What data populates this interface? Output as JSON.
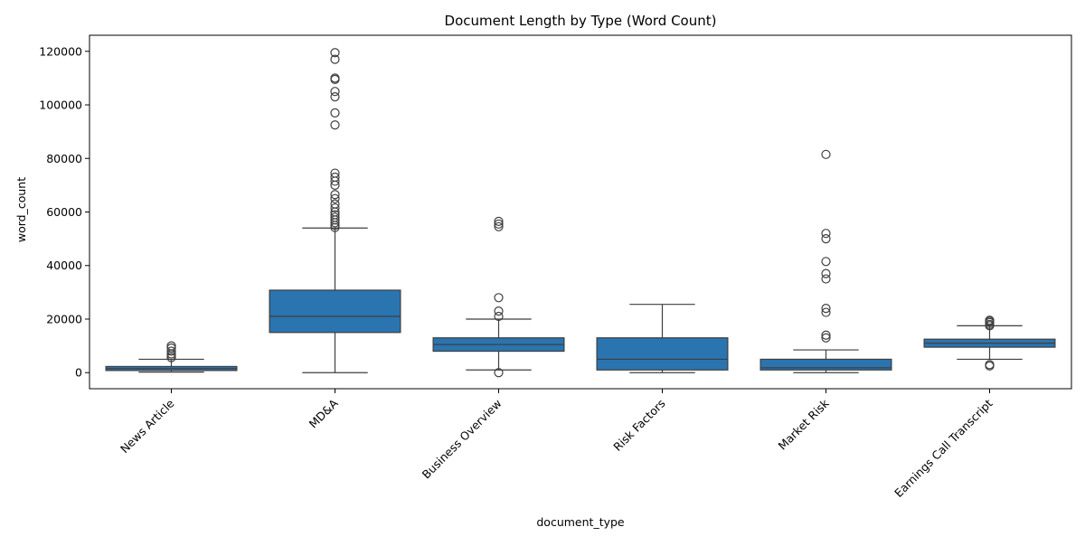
{
  "chart_data": {
    "type": "box",
    "title": "Document Length by Type (Word Count)",
    "xlabel": "document_type",
    "ylabel": "word_count",
    "ylim": [
      -6000,
      126000
    ],
    "yticks": [
      0,
      20000,
      40000,
      60000,
      80000,
      100000,
      120000
    ],
    "ytick_labels": [
      "0",
      "20000",
      "40000",
      "60000",
      "80000",
      "100000",
      "120000"
    ],
    "grid": false,
    "box_color": "#2a74b0",
    "line_color": "#3f3f3f",
    "categories": [
      "News Article",
      "MD&A",
      "Business Overview",
      "Risk Factors",
      "Market Risk",
      "Earnings Call Transcript"
    ],
    "boxes": [
      {
        "category": "News Article",
        "whisker_low": 200,
        "q1": 800,
        "median": 1500,
        "q3": 2300,
        "whisker_high": 5000,
        "outliers": [
          5600,
          6300,
          7000,
          8000,
          9200,
          10000
        ]
      },
      {
        "category": "MD&A",
        "whisker_low": 0,
        "q1": 15000,
        "median": 21000,
        "q3": 30800,
        "whisker_high": 54000,
        "outliers": [
          54200,
          55000,
          56000,
          57000,
          58000,
          59000,
          60000,
          61500,
          63000,
          65000,
          66500,
          70000,
          71500,
          73000,
          74500,
          92500,
          97000,
          103000,
          105000,
          109500,
          110000,
          117000,
          119500
        ]
      },
      {
        "category": "Business Overview",
        "whisker_low": 1000,
        "q1": 8000,
        "median": 10500,
        "q3": 13000,
        "whisker_high": 20000,
        "outliers": [
          0,
          21000,
          23000,
          28000,
          54500,
          55500,
          56500
        ]
      },
      {
        "category": "Risk Factors",
        "whisker_low": 0,
        "q1": 1000,
        "median": 5000,
        "q3": 13000,
        "whisker_high": 25500,
        "outliers": []
      },
      {
        "category": "Market Risk",
        "whisker_low": 0,
        "q1": 1000,
        "median": 1800,
        "q3": 5000,
        "whisker_high": 8500,
        "outliers": [
          13000,
          14000,
          22500,
          24000,
          35000,
          37000,
          41500,
          50000,
          52000,
          81500
        ]
      },
      {
        "category": "Earnings Call Transcript",
        "whisker_low": 5000,
        "q1": 9500,
        "median": 11000,
        "q3": 12500,
        "whisker_high": 17500,
        "outliers": [
          2500,
          3000,
          17500,
          18000,
          18700,
          19200,
          19600
        ]
      }
    ]
  }
}
